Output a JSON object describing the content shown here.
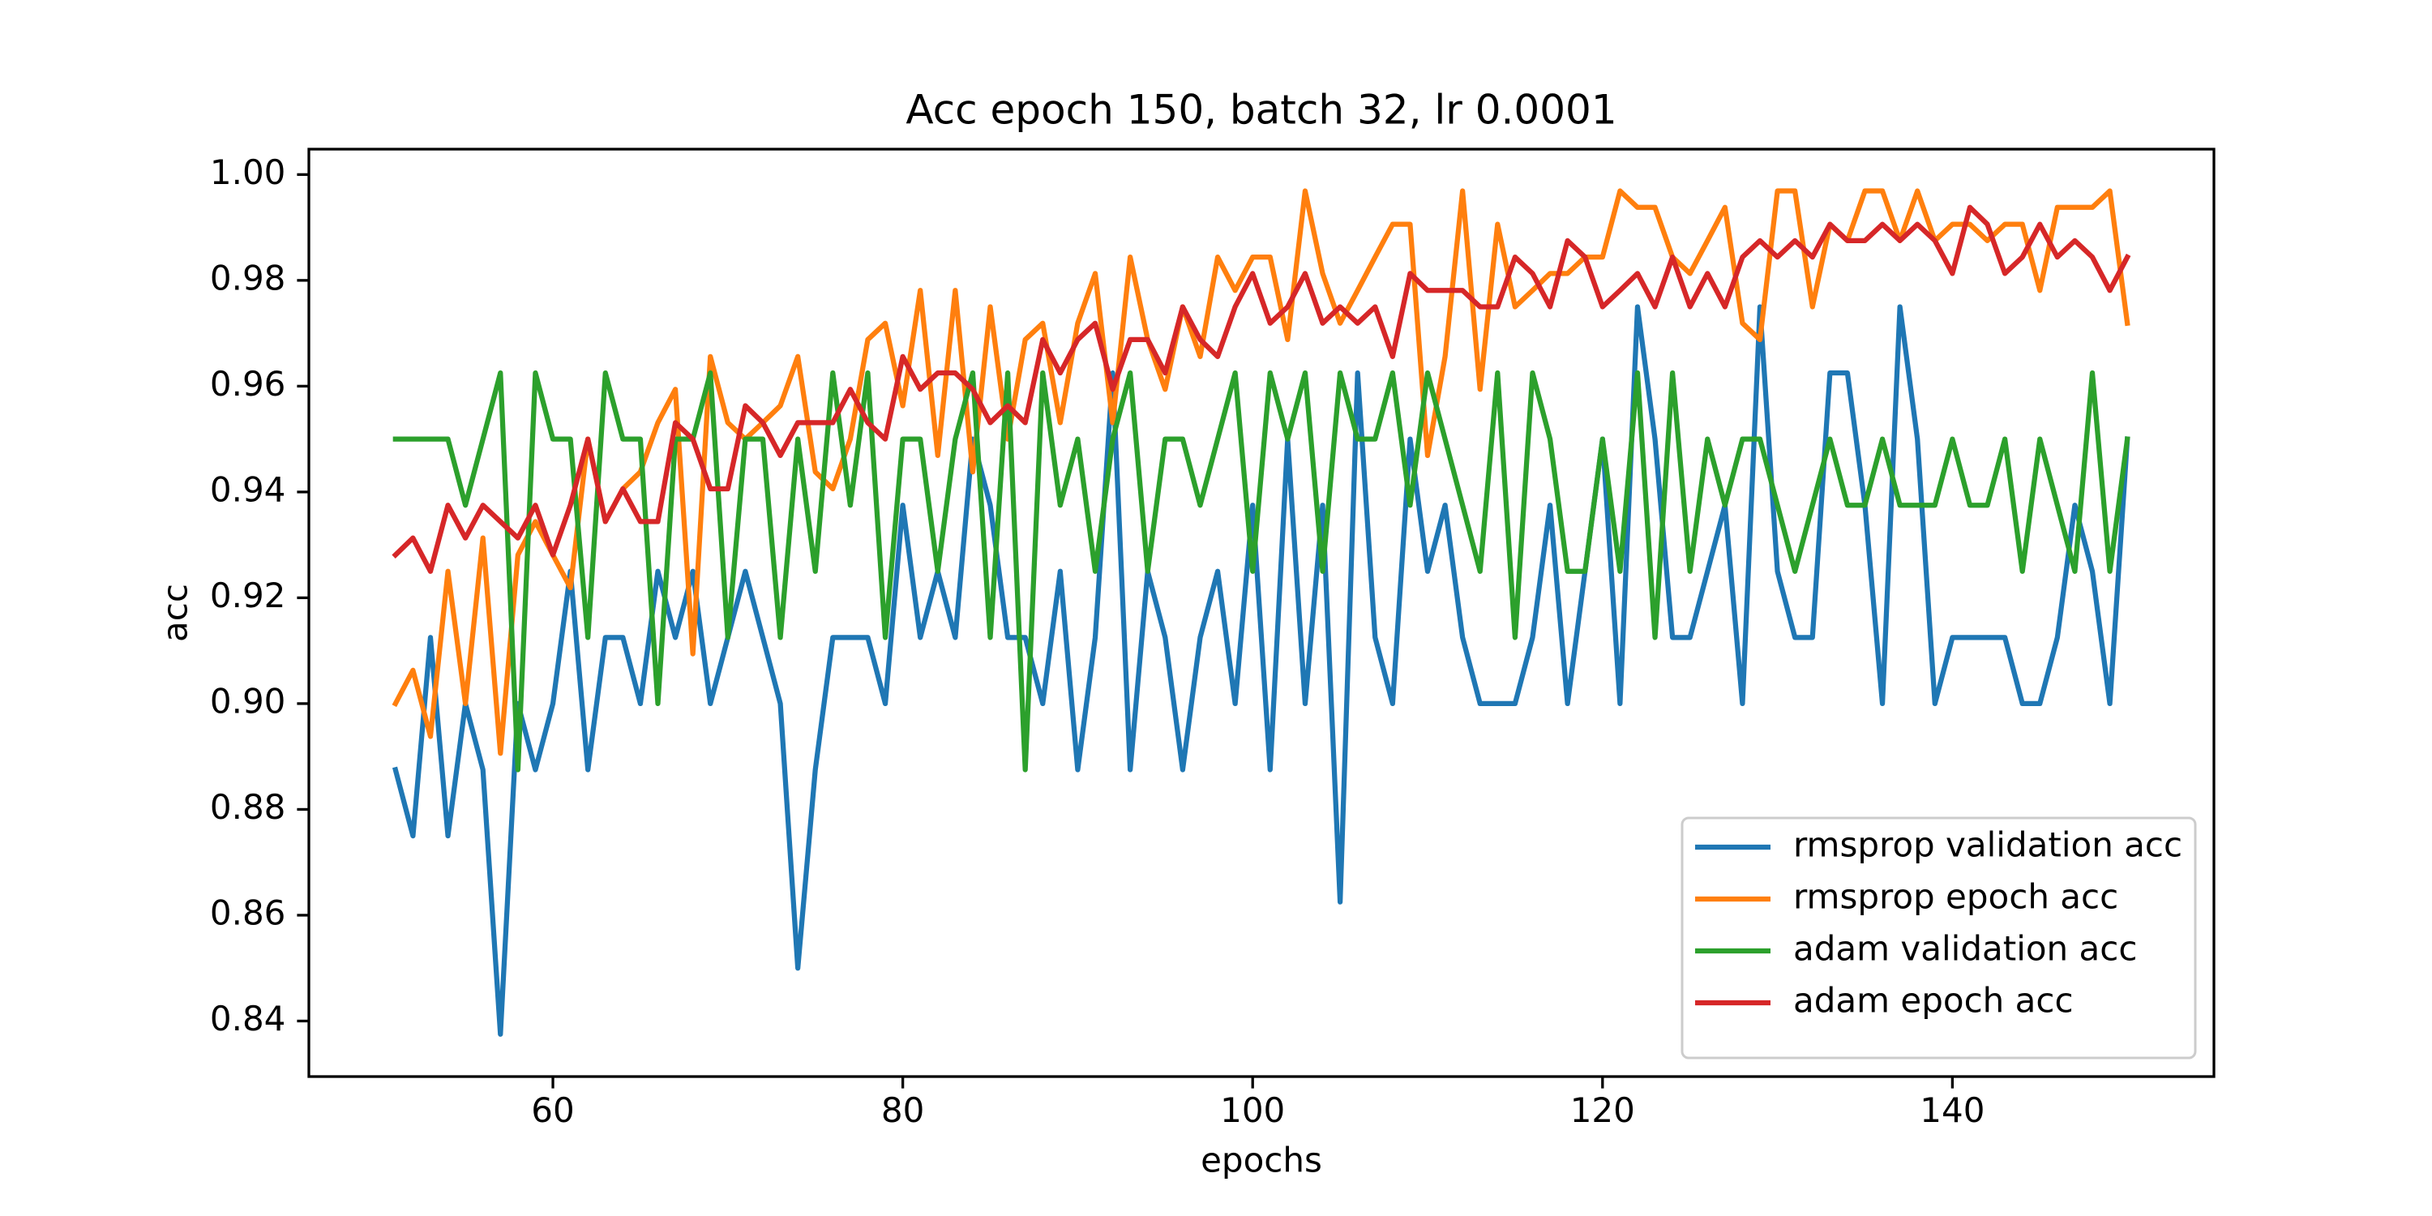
{
  "chart_data": {
    "type": "line",
    "title": "Acc epoch 150, batch 32, lr 0.0001",
    "xlabel": "epochs",
    "ylabel": "acc",
    "x": [
      51,
      52,
      53,
      54,
      55,
      56,
      57,
      58,
      59,
      60,
      61,
      62,
      63,
      64,
      65,
      66,
      67,
      68,
      69,
      70,
      71,
      72,
      73,
      74,
      75,
      76,
      77,
      78,
      79,
      80,
      81,
      82,
      83,
      84,
      85,
      86,
      87,
      88,
      89,
      90,
      91,
      92,
      93,
      94,
      95,
      96,
      97,
      98,
      99,
      100,
      101,
      102,
      103,
      104,
      105,
      106,
      107,
      108,
      109,
      110,
      111,
      112,
      113,
      114,
      115,
      116,
      117,
      118,
      119,
      120,
      121,
      122,
      123,
      124,
      125,
      126,
      127,
      128,
      129,
      130,
      131,
      132,
      133,
      134,
      135,
      136,
      137,
      138,
      139,
      140,
      141,
      142,
      143,
      144,
      145,
      146,
      147,
      148,
      149,
      150
    ],
    "series": [
      {
        "name": "rmsprop validation acc",
        "color": "#1f77b4",
        "values": [
          0.8875,
          0.875,
          0.9125,
          0.875,
          0.9,
          0.8875,
          0.8375,
          0.9,
          0.8875,
          0.9,
          0.925,
          0.8875,
          0.9125,
          0.9125,
          0.9,
          0.925,
          0.9125,
          0.925,
          0.9,
          0.9125,
          0.925,
          0.9125,
          0.9,
          0.85,
          0.8875,
          0.9125,
          0.9125,
          0.9125,
          0.9,
          0.9375,
          0.9125,
          0.925,
          0.9125,
          0.95,
          0.9375,
          0.9125,
          0.9125,
          0.9,
          0.925,
          0.8875,
          0.9125,
          0.9625,
          0.8875,
          0.925,
          0.9125,
          0.8875,
          0.9125,
          0.925,
          0.9,
          0.9375,
          0.8875,
          0.95,
          0.9,
          0.9375,
          0.8625,
          0.9625,
          0.9125,
          0.9,
          0.95,
          0.925,
          0.9375,
          0.9125,
          0.9,
          0.9,
          0.9,
          0.9125,
          0.9375,
          0.9,
          0.925,
          0.95,
          0.9,
          0.975,
          0.95,
          0.9125,
          0.9125,
          0.925,
          0.9375,
          0.9,
          0.975,
          0.925,
          0.9125,
          0.9125,
          0.9625,
          0.9625,
          0.9375,
          0.9,
          0.975,
          0.95,
          0.9,
          0.9125,
          0.9125,
          0.9125,
          0.9125,
          0.9,
          0.9,
          0.9125,
          0.9375,
          0.925,
          0.9,
          0.95
        ]
      },
      {
        "name": "rmsprop epoch acc",
        "color": "#ff7f0e",
        "values": [
          0.9,
          0.9063,
          0.8938,
          0.925,
          0.9,
          0.9313,
          0.8906,
          0.9281,
          0.9344,
          0.9281,
          0.9219,
          0.95,
          0.9344,
          0.9406,
          0.9438,
          0.9531,
          0.9594,
          0.9094,
          0.9656,
          0.9531,
          0.95,
          0.9531,
          0.9563,
          0.9656,
          0.9438,
          0.9406,
          0.95,
          0.9688,
          0.9719,
          0.9563,
          0.9781,
          0.9469,
          0.9781,
          0.9438,
          0.975,
          0.95,
          0.9688,
          0.9719,
          0.9531,
          0.9719,
          0.9813,
          0.9531,
          0.9844,
          0.9688,
          0.9594,
          0.975,
          0.9656,
          0.9844,
          0.9781,
          0.9844,
          0.9844,
          0.9688,
          0.9969,
          0.9813,
          0.9719,
          0.9781,
          0.9844,
          0.9906,
          0.9906,
          0.9469,
          0.9656,
          0.9969,
          0.9594,
          0.9906,
          0.975,
          0.9781,
          0.9813,
          0.9813,
          0.9844,
          0.9844,
          0.9969,
          0.9938,
          0.9938,
          0.9844,
          0.9813,
          0.9875,
          0.9938,
          0.9719,
          0.9688,
          0.9969,
          0.9969,
          0.975,
          0.9906,
          0.9875,
          0.9969,
          0.9969,
          0.9875,
          0.9969,
          0.9875,
          0.9906,
          0.9906,
          0.9875,
          0.9906,
          0.9906,
          0.9781,
          0.9938,
          0.9938,
          0.9938,
          0.9969,
          0.9719
        ]
      },
      {
        "name": "adam validation acc",
        "color": "#2ca02c",
        "values": [
          0.95,
          0.95,
          0.95,
          0.95,
          0.9375,
          0.95,
          0.9625,
          0.8875,
          0.9625,
          0.95,
          0.95,
          0.9125,
          0.9625,
          0.95,
          0.95,
          0.9,
          0.95,
          0.95,
          0.9625,
          0.9125,
          0.95,
          0.95,
          0.9125,
          0.95,
          0.925,
          0.9625,
          0.9375,
          0.9625,
          0.9125,
          0.95,
          0.95,
          0.925,
          0.95,
          0.9625,
          0.9125,
          0.9625,
          0.8875,
          0.9625,
          0.9375,
          0.95,
          0.925,
          0.95,
          0.9625,
          0.925,
          0.95,
          0.95,
          0.9375,
          0.95,
          0.9625,
          0.925,
          0.9625,
          0.95,
          0.9625,
          0.925,
          0.9625,
          0.95,
          0.95,
          0.9625,
          0.9375,
          0.9625,
          0.95,
          0.9375,
          0.925,
          0.9625,
          0.9125,
          0.9625,
          0.95,
          0.925,
          0.925,
          0.95,
          0.925,
          0.9625,
          0.9125,
          0.9625,
          0.925,
          0.95,
          0.9375,
          0.95,
          0.95,
          0.9375,
          0.925,
          0.9375,
          0.95,
          0.9375,
          0.9375,
          0.95,
          0.9375,
          0.9375,
          0.9375,
          0.95,
          0.9375,
          0.9375,
          0.95,
          0.925,
          0.95,
          0.9375,
          0.925,
          0.9625,
          0.925,
          0.95
        ]
      },
      {
        "name": "adam epoch acc",
        "color": "#d62728",
        "values": [
          0.9281,
          0.9313,
          0.925,
          0.9375,
          0.9313,
          0.9375,
          0.9344,
          0.9313,
          0.9375,
          0.9281,
          0.9375,
          0.95,
          0.9344,
          0.9406,
          0.9344,
          0.9344,
          0.9531,
          0.95,
          0.9406,
          0.9406,
          0.9563,
          0.9531,
          0.9469,
          0.9531,
          0.9531,
          0.9531,
          0.9594,
          0.9531,
          0.95,
          0.9656,
          0.9594,
          0.9625,
          0.9625,
          0.9594,
          0.9531,
          0.9563,
          0.9531,
          0.9688,
          0.9625,
          0.9688,
          0.9719,
          0.9594,
          0.9688,
          0.9688,
          0.9625,
          0.975,
          0.9688,
          0.9656,
          0.975,
          0.9813,
          0.9719,
          0.975,
          0.9813,
          0.9719,
          0.975,
          0.9719,
          0.975,
          0.9656,
          0.9813,
          0.9781,
          0.9781,
          0.9781,
          0.975,
          0.975,
          0.9844,
          0.9813,
          0.975,
          0.9875,
          0.9844,
          0.975,
          0.9781,
          0.9813,
          0.975,
          0.9844,
          0.975,
          0.9813,
          0.975,
          0.9844,
          0.9875,
          0.9844,
          0.9875,
          0.9844,
          0.9906,
          0.9875,
          0.9875,
          0.9906,
          0.9875,
          0.9906,
          0.9875,
          0.9813,
          0.9938,
          0.9906,
          0.9813,
          0.9844,
          0.9906,
          0.9844,
          0.9875,
          0.9844,
          0.9781,
          0.9844
        ]
      }
    ],
    "xlim": [
      46.05,
      154.95
    ],
    "ylim": [
      0.8295,
      1.0048
    ],
    "xticks": [
      60,
      80,
      100,
      120,
      140
    ],
    "yticks": [
      {
        "value": 0.84,
        "label": "0.84"
      },
      {
        "value": 0.86,
        "label": "0.86"
      },
      {
        "value": 0.88,
        "label": "0.88"
      },
      {
        "value": 0.9,
        "label": "0.90"
      },
      {
        "value": 0.92,
        "label": "0.92"
      },
      {
        "value": 0.94,
        "label": "0.94"
      },
      {
        "value": 0.96,
        "label": "0.96"
      },
      {
        "value": 0.98,
        "label": "0.98"
      },
      {
        "value": 1.0,
        "label": "1.00"
      }
    ],
    "grid": false,
    "legend_loc": "lower right"
  }
}
